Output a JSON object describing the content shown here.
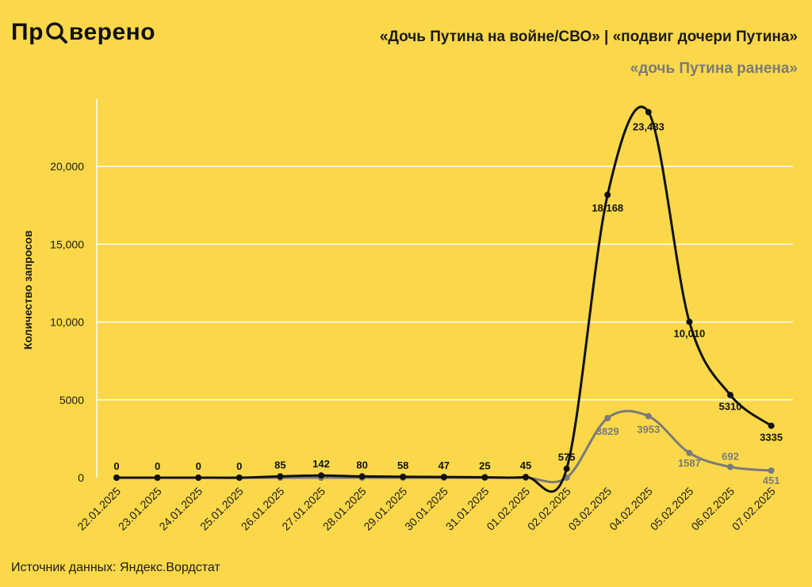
{
  "header": {
    "logo_left": "Пр",
    "logo_right": "верено",
    "logo_icon": "magnifier-icon",
    "title_line1": "«Дочь Путина на войне/СВО» | «подвиг дочери Путина»",
    "title_line2": "«дочь Путина ранена»"
  },
  "footer": {
    "source": "Источник данных: Яндекс.Вордстат"
  },
  "colors": {
    "background": "#FBD84A",
    "series1": "#111111",
    "series2": "#7a7a7a",
    "grid": "#ffffff"
  },
  "chart_data": {
    "type": "line",
    "ylabel": "Количество запросов",
    "xlabel": "",
    "ylim": [
      0,
      24000
    ],
    "yticks": [
      0,
      5000,
      10000,
      15000,
      20000
    ],
    "ytick_labels": [
      "0",
      "5000",
      "10,000",
      "15,000",
      "20,000"
    ],
    "grid": "horizontal",
    "categories": [
      "22.01.2025",
      "23.01.2025",
      "24.01.2025",
      "25.01.2025",
      "26.01.2025",
      "27.01.2025",
      "28.01.2025",
      "29.01.2025",
      "30.01.2025",
      "31.01.2025",
      "01.02.2025",
      "02.02.2025",
      "03.02.2025",
      "04.02.2025",
      "05.02.2025",
      "06.02.2025",
      "07.02.2025"
    ],
    "series": [
      {
        "values": [
          0,
          0,
          0,
          0,
          85,
          142,
          80,
          58,
          47,
          25,
          45,
          575,
          18168,
          23483,
          10010,
          5310,
          3335
        ],
        "labels": [
          "0",
          "0",
          "0",
          "0",
          "85",
          "142",
          "80",
          "58",
          "47",
          "25",
          "45",
          "575",
          "18,168",
          "23,483",
          "10,010",
          "5310",
          "3335"
        ]
      },
      {
        "values": [
          0,
          0,
          0,
          0,
          0,
          0,
          0,
          0,
          0,
          0,
          0,
          0,
          3829,
          3953,
          1587,
          692,
          451
        ],
        "labels": [
          "",
          "",
          "",
          "",
          "",
          "",
          "",
          "",
          "",
          "",
          "",
          "",
          "3829",
          "3953",
          "1587",
          "692",
          "451"
        ]
      }
    ]
  }
}
